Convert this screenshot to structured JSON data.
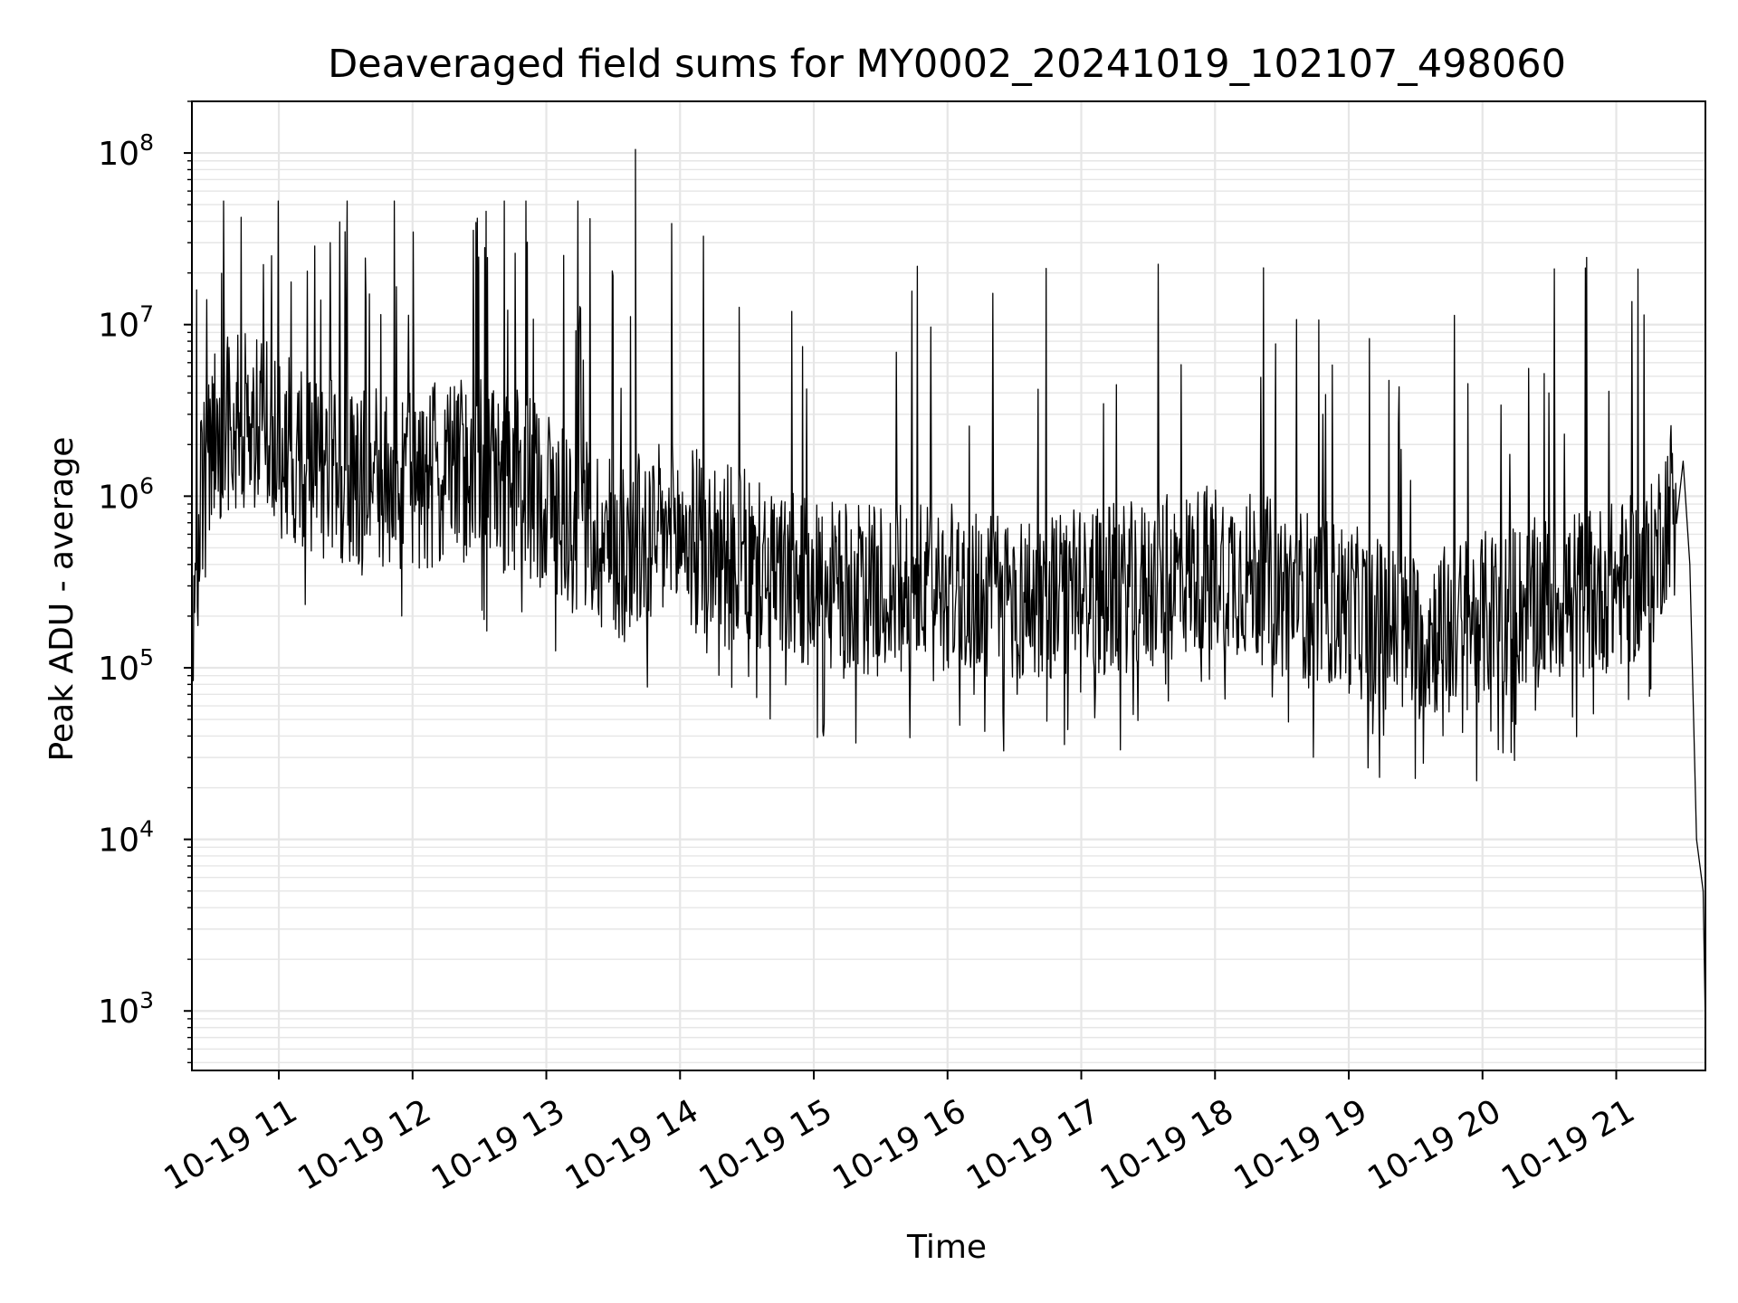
{
  "chart_data": {
    "type": "line",
    "title": "Deaveraged field sums for MY0002_20241019_102107_498060",
    "xlabel": "Time",
    "ylabel": "Peak ADU - average",
    "yscale": "log",
    "ylim": [
      450,
      200000000
    ],
    "xlim": [
      "2024-10-19 10:21",
      "2024-10-19 21:40"
    ],
    "x_ticks": [
      "10-19 11",
      "10-19 12",
      "10-19 13",
      "10-19 14",
      "10-19 15",
      "10-19 16",
      "10-19 17",
      "10-19 18",
      "10-19 19",
      "10-19 20",
      "10-19 21"
    ],
    "x_tick_times": [
      "2024-10-19 11:00",
      "2024-10-19 12:00",
      "2024-10-19 13:00",
      "2024-10-19 14:00",
      "2024-10-19 15:00",
      "2024-10-19 16:00",
      "2024-10-19 17:00",
      "2024-10-19 18:00",
      "2024-10-19 19:00",
      "2024-10-19 20:00",
      "2024-10-19 21:00"
    ],
    "y_ticks": [
      1000,
      10000,
      100000,
      1000000,
      10000000,
      100000000
    ],
    "y_tick_labels": [
      {
        "base": "10",
        "exp": "3"
      },
      {
        "base": "10",
        "exp": "4"
      },
      {
        "base": "10",
        "exp": "5"
      },
      {
        "base": "10",
        "exp": "6"
      },
      {
        "base": "10",
        "exp": "7"
      },
      {
        "base": "10",
        "exp": "8"
      }
    ],
    "grid": true,
    "line_color": "#000000",
    "grid_color": "#e6e6e6",
    "series": [
      {
        "x": [
          "2024-10-19 10:21",
          "2024-10-19 10:25",
          "2024-10-19 10:30",
          "2024-10-19 10:40",
          "2024-10-19 10:50",
          "2024-10-19 11:00",
          "2024-10-19 11:30",
          "2024-10-19 12:00",
          "2024-10-19 12:30",
          "2024-10-19 13:00",
          "2024-10-19 13:30",
          "2024-10-19 14:00",
          "2024-10-19 14:30",
          "2024-10-19 15:00",
          "2024-10-19 15:30",
          "2024-10-19 16:00",
          "2024-10-19 16:30",
          "2024-10-19 17:00",
          "2024-10-19 17:30",
          "2024-10-19 18:00",
          "2024-10-19 18:30",
          "2024-10-19 19:00",
          "2024-10-19 19:30",
          "2024-10-19 20:00",
          "2024-10-19 20:30",
          "2024-10-19 21:00",
          "2024-10-19 21:15",
          "2024-10-19 21:25",
          "2024-10-19 21:30",
          "2024-10-19 21:33",
          "2024-10-19 21:36",
          "2024-10-19 21:39",
          "2024-10-19 21:40"
        ],
        "y": [
          100000,
          800000,
          2000000,
          3000000,
          2500000,
          2000000,
          1200000,
          1200000,
          1500000,
          1000000,
          500000,
          600000,
          400000,
          300000,
          280000,
          300000,
          250000,
          280000,
          300000,
          400000,
          300000,
          220000,
          150000,
          200000,
          250000,
          300000,
          350000,
          1000000,
          1600000,
          400000,
          10000,
          5000,
          800
        ]
      }
    ]
  }
}
